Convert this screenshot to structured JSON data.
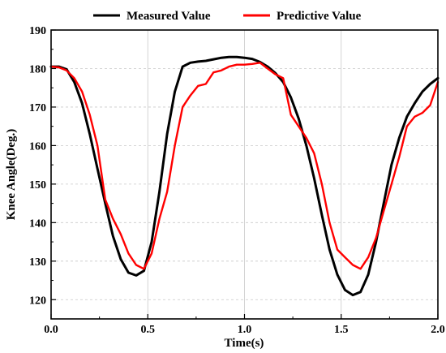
{
  "chart_data": {
    "type": "line",
    "title": "",
    "xlabel": "Time(s)",
    "ylabel": "Knee Angle(Deg.)",
    "xlim": [
      0.0,
      2.0
    ],
    "ylim": [
      115,
      190
    ],
    "xticks": [
      0.0,
      0.5,
      1.0,
      1.5,
      2.0
    ],
    "xtick_labels": [
      "0.0",
      "0.5",
      "1.0",
      "1.5",
      "2.0"
    ],
    "yticks": [
      120,
      130,
      140,
      150,
      160,
      170,
      180,
      190
    ],
    "ytick_labels": [
      "120",
      "130",
      "140",
      "150",
      "160",
      "170",
      "180",
      "190"
    ],
    "grid": true,
    "legend_position": "top",
    "series": [
      {
        "name": "Measured Value",
        "color": "#000000",
        "x": [
          0.0,
          0.04,
          0.08,
          0.12,
          0.16,
          0.2,
          0.24,
          0.28,
          0.32,
          0.36,
          0.4,
          0.44,
          0.48,
          0.52,
          0.56,
          0.6,
          0.64,
          0.68,
          0.72,
          0.76,
          0.8,
          0.84,
          0.88,
          0.92,
          0.96,
          1.0,
          1.04,
          1.08,
          1.12,
          1.16,
          1.2,
          1.24,
          1.28,
          1.32,
          1.36,
          1.4,
          1.44,
          1.48,
          1.52,
          1.56,
          1.6,
          1.64,
          1.68,
          1.72,
          1.76,
          1.8,
          1.84,
          1.88,
          1.92,
          1.96,
          2.0
        ],
        "values": [
          180.5,
          180.5,
          179.8,
          176.5,
          171.0,
          163.0,
          154.0,
          145.0,
          136.5,
          130.5,
          127.0,
          126.3,
          127.5,
          135.0,
          148.0,
          163.0,
          174.0,
          180.5,
          181.5,
          181.8,
          182.0,
          182.4,
          182.8,
          183.0,
          183.0,
          182.8,
          182.5,
          181.7,
          180.5,
          178.8,
          176.5,
          172.5,
          167.0,
          160.0,
          151.5,
          142.0,
          133.0,
          126.5,
          122.5,
          121.2,
          122.0,
          126.5,
          135.0,
          145.0,
          155.0,
          162.0,
          167.5,
          171.0,
          174.0,
          176.0,
          177.5
        ]
      },
      {
        "name": "Predictive Value",
        "color": "#ff0000",
        "x": [
          0.0,
          0.04,
          0.08,
          0.12,
          0.16,
          0.2,
          0.24,
          0.28,
          0.32,
          0.36,
          0.4,
          0.44,
          0.48,
          0.52,
          0.56,
          0.6,
          0.64,
          0.68,
          0.72,
          0.76,
          0.8,
          0.84,
          0.88,
          0.92,
          0.96,
          1.0,
          1.04,
          1.08,
          1.12,
          1.16,
          1.2,
          1.24,
          1.28,
          1.32,
          1.36,
          1.4,
          1.44,
          1.48,
          1.52,
          1.56,
          1.6,
          1.64,
          1.68,
          1.72,
          1.76,
          1.8,
          1.84,
          1.88,
          1.92,
          1.96,
          2.0
        ],
        "values": [
          180.5,
          180.3,
          179.5,
          177.5,
          174.0,
          168.0,
          160.0,
          146.0,
          141.0,
          137.0,
          132.0,
          129.0,
          128.0,
          132.0,
          141.0,
          148.0,
          160.0,
          170.0,
          173.0,
          175.5,
          176.0,
          179.0,
          179.5,
          180.5,
          181.0,
          181.0,
          181.2,
          181.5,
          180.0,
          178.5,
          177.5,
          168.0,
          165.0,
          162.0,
          158.0,
          150.0,
          140.0,
          133.0,
          131.0,
          129.0,
          128.0,
          131.0,
          136.0,
          143.0,
          150.0,
          157.0,
          165.0,
          167.5,
          168.5,
          170.5,
          176.5
        ]
      }
    ]
  }
}
